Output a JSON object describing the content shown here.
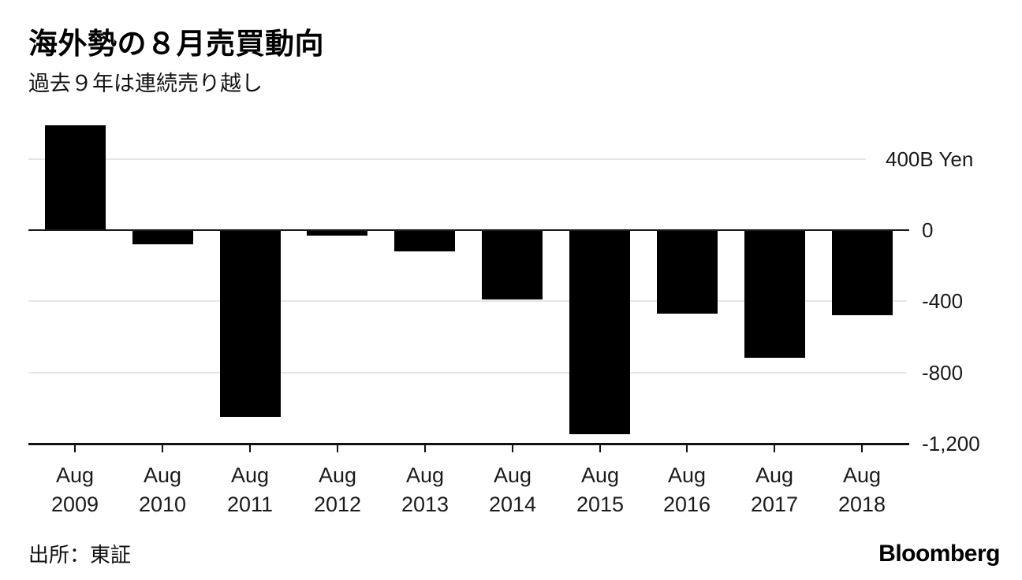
{
  "title": "海外勢の８月売買動向",
  "subtitle": "過去９年は連続売り越し",
  "source": "出所：東証",
  "brand": "Bloomberg",
  "colors": {
    "bar": "#000000",
    "zero_line": "#1a1a1a",
    "bottom_axis": "#111111",
    "gridline": "#e6e6e6",
    "title_text": "#000000",
    "tick_text": "#1a1a1a",
    "background": "#ffffff"
  },
  "chart_data": {
    "type": "bar",
    "title": "海外勢の８月売買動向",
    "subtitle": "過去９年は連続売り越し",
    "unit": "B Yen",
    "categories": [
      "Aug 2009",
      "Aug 2010",
      "Aug 2011",
      "Aug 2012",
      "Aug 2013",
      "Aug 2014",
      "Aug 2015",
      "Aug 2016",
      "Aug 2017",
      "Aug 2018"
    ],
    "values": [
      590,
      -80,
      -1050,
      -30,
      -120,
      -390,
      -1150,
      -470,
      -720,
      -480
    ],
    "x_ticks": [
      {
        "month": "Aug",
        "year": "2009"
      },
      {
        "month": "Aug",
        "year": "2010"
      },
      {
        "month": "Aug",
        "year": "2011"
      },
      {
        "month": "Aug",
        "year": "2012"
      },
      {
        "month": "Aug",
        "year": "2013"
      },
      {
        "month": "Aug",
        "year": "2014"
      },
      {
        "month": "Aug",
        "year": "2015"
      },
      {
        "month": "Aug",
        "year": "2016"
      },
      {
        "month": "Aug",
        "year": "2017"
      },
      {
        "month": "Aug",
        "year": "2018"
      }
    ],
    "y_ticks": [
      {
        "value": 400,
        "label": "400B Yen"
      },
      {
        "value": 0,
        "label": "0"
      },
      {
        "value": -400,
        "label": "-400"
      },
      {
        "value": -800,
        "label": "-800"
      },
      {
        "value": -1200,
        "label": "-1,200"
      }
    ],
    "ylim": [
      -1200,
      400
    ],
    "grid": "horizontal",
    "legend": "none",
    "bar_color": "#000000",
    "source": "出所：東証"
  }
}
